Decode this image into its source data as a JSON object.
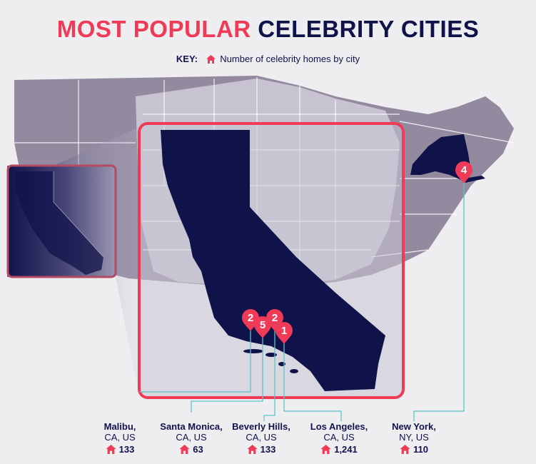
{
  "title": {
    "part1": "MOST POPULAR",
    "part2": "CELEBRITY CITIES"
  },
  "key": {
    "label": "KEY:",
    "text": "Number of celebrity homes by city",
    "icon": "house-icon"
  },
  "colors": {
    "accent": "#ef3b57",
    "navy": "#10124a",
    "state_light": "#c7c3d0",
    "state_dark": "#948aa0",
    "leader": "#5cc3c7"
  },
  "pins": [
    {
      "rank": "2",
      "city": "Malibu"
    },
    {
      "rank": "5",
      "city": "Santa Monica"
    },
    {
      "rank": "2",
      "city": "Beverly Hills"
    },
    {
      "rank": "1",
      "city": "Los Angeles"
    },
    {
      "rank": "4",
      "city": "New York"
    }
  ],
  "cities": [
    {
      "name": "Malibu,",
      "region": "CA, US",
      "count": "133"
    },
    {
      "name": "Santa Monica,",
      "region": "CA, US",
      "count": "63"
    },
    {
      "name": "Beverly Hills,",
      "region": "CA, US",
      "count": "133"
    },
    {
      "name": "Los Angeles,",
      "region": "CA, US",
      "count": "1,241"
    },
    {
      "name": "New York,",
      "region": "NY, US",
      "count": "110"
    }
  ]
}
